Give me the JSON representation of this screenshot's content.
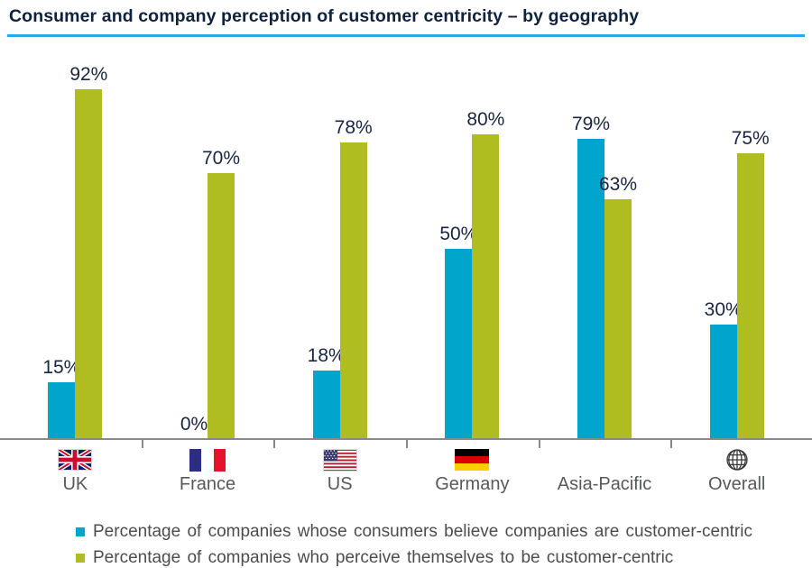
{
  "title": "Consumer and company perception of customer centricity – by geography",
  "colors": {
    "title_text": "#0e2240",
    "title_underline": "#29abe2",
    "series_consumer_blue": "#00a5ce",
    "series_company_green": "#afbd21",
    "axis_gray": "#87898c",
    "bar_label_navy": "#1a2541",
    "category_label_gray": "#58595b",
    "legend_text_gray": "#4d4d4f"
  },
  "chart_data": {
    "type": "bar",
    "title": "Consumer and company perception of customer centricity – by geography",
    "categories": [
      "UK",
      "France",
      "US",
      "Germany",
      "Asia-Pacific",
      "Overall"
    ],
    "category_icons": [
      "uk-flag",
      "france-flag",
      "us-flag",
      "germany-flag",
      null,
      "globe"
    ],
    "series": [
      {
        "name": "Percentage of companies whose consumers believe companies are customer-centric",
        "color": "#00a5ce",
        "values": [
          15,
          0,
          18,
          50,
          79,
          30
        ]
      },
      {
        "name": "Percentage of companies who perceive themselves to be customer-centric",
        "color": "#afbd21",
        "values": [
          92,
          70,
          78,
          80,
          63,
          75
        ]
      }
    ],
    "value_suffix": "%",
    "data_labels": [
      "15%",
      "0%",
      "18%",
      "50%",
      "79%",
      "30%",
      "92%",
      "70%",
      "78%",
      "80%",
      "63%",
      "75%"
    ],
    "xlabel": "",
    "ylabel": "",
    "ylim": [
      0,
      100
    ],
    "grid": false,
    "y_axis_visible": false,
    "legend_position": "bottom"
  }
}
